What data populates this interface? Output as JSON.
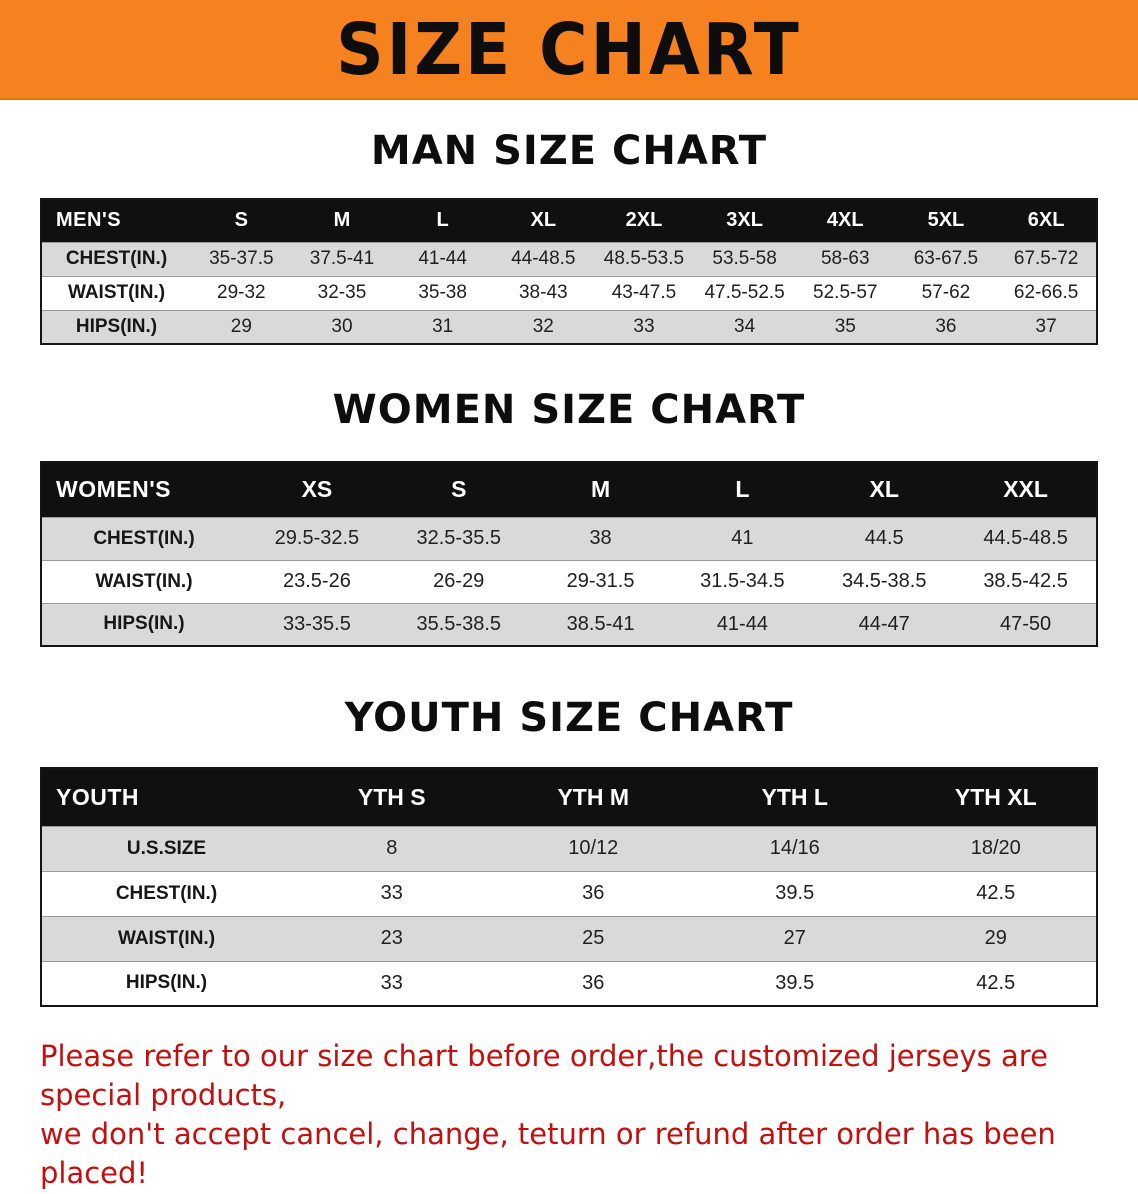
{
  "banner": {
    "title": "SIZE CHART"
  },
  "colors": {
    "banner_bg": "#F5821E",
    "header_bg": "#101010",
    "row_alt": "#D9D9D9",
    "note_color": "#C40F0F"
  },
  "tables": [
    {
      "id": "men",
      "heading": "MAN SIZE CHART",
      "corner": "MEN'S",
      "columns": [
        "S",
        "M",
        "L",
        "XL",
        "2XL",
        "3XL",
        "4XL",
        "5XL",
        "6XL"
      ],
      "rows": [
        {
          "label": "CHEST(IN.)",
          "values": [
            "35-37.5",
            "37.5-41",
            "41-44",
            "44-48.5",
            "48.5-53.5",
            "53.5-58",
            "58-63",
            "63-67.5",
            "67.5-72"
          ]
        },
        {
          "label": "WAIST(IN.)",
          "values": [
            "29-32",
            "32-35",
            "35-38",
            "38-43",
            "43-47.5",
            "47.5-52.5",
            "52.5-57",
            "57-62",
            "62-66.5"
          ]
        },
        {
          "label": "HIPS(IN.)",
          "values": [
            "29",
            "30",
            "31",
            "32",
            "33",
            "34",
            "35",
            "36",
            "37"
          ]
        }
      ]
    },
    {
      "id": "women",
      "heading": "WOMEN SIZE CHART",
      "corner": "WOMEN'S",
      "columns": [
        "XS",
        "S",
        "M",
        "L",
        "XL",
        "XXL"
      ],
      "rows": [
        {
          "label": "CHEST(IN.)",
          "values": [
            "29.5-32.5",
            "32.5-35.5",
            "38",
            "41",
            "44.5",
            "44.5-48.5"
          ]
        },
        {
          "label": "WAIST(IN.)",
          "values": [
            "23.5-26",
            "26-29",
            "29-31.5",
            "31.5-34.5",
            "34.5-38.5",
            "38.5-42.5"
          ]
        },
        {
          "label": "HIPS(IN.)",
          "values": [
            "33-35.5",
            "35.5-38.5",
            "38.5-41",
            "41-44",
            "44-47",
            "47-50"
          ]
        }
      ]
    },
    {
      "id": "youth",
      "heading": "YOUTH SIZE CHART",
      "corner": "YOUTH",
      "columns": [
        "YTH S",
        "YTH M",
        "YTH L",
        "YTH XL"
      ],
      "rows": [
        {
          "label": "U.S.SIZE",
          "values": [
            "8",
            "10/12",
            "14/16",
            "18/20"
          ]
        },
        {
          "label": "CHEST(IN.)",
          "values": [
            "33",
            "36",
            "39.5",
            "42.5"
          ]
        },
        {
          "label": "WAIST(IN.)",
          "values": [
            "23",
            "25",
            "27",
            "29"
          ]
        },
        {
          "label": "HIPS(IN.)",
          "values": [
            "33",
            "36",
            "39.5",
            "42.5"
          ]
        }
      ]
    }
  ],
  "note": {
    "line1": "Please refer to our size chart before order,the customized jerseys are special products,",
    "line2": "we don't accept cancel, change, teturn or refund after order has been placed!"
  }
}
